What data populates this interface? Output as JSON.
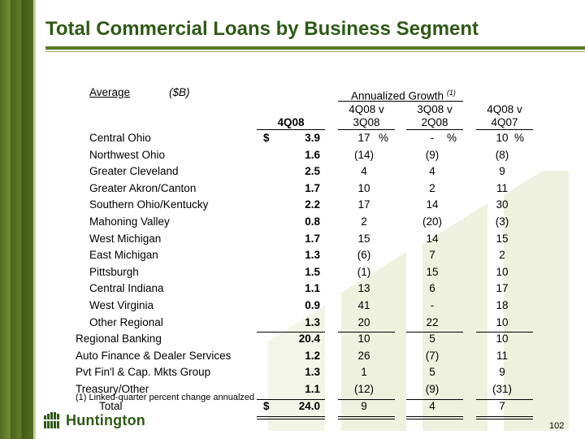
{
  "title": "Total Commercial Loans by Business Segment",
  "header": {
    "average_label": "Average",
    "unit_label": "($B)",
    "annualized_growth_label": "Annualized Growth",
    "annualized_growth_note": "(1)",
    "col_4q08": "4Q08",
    "col_a_line1": "4Q08 v",
    "col_a_line2": "3Q08",
    "col_b_line1": "3Q08 v",
    "col_b_line2": "2Q08",
    "col_c_line1": "4Q08 v",
    "col_c_line2": "4Q07"
  },
  "rows": [
    {
      "label": "Central Ohio",
      "dollar": "$",
      "value": "3.9",
      "g1": "17",
      "g1_pct": "%",
      "g2": "-",
      "g2_pct": "%",
      "g3": "10",
      "g3_pct": "%"
    },
    {
      "label": "Northwest Ohio",
      "dollar": "",
      "value": "1.6",
      "g1": "(14)",
      "g2": "(9)",
      "g3": "(8)"
    },
    {
      "label": "Greater Cleveland",
      "dollar": "",
      "value": "2.5",
      "g1": "4",
      "g2": "4",
      "g3": "9"
    },
    {
      "label": "Greater Akron/Canton",
      "dollar": "",
      "value": "1.7",
      "g1": "10",
      "g2": "2",
      "g3": "11"
    },
    {
      "label": "Southern Ohio/Kentucky",
      "dollar": "",
      "value": "2.2",
      "g1": "17",
      "g2": "14",
      "g3": "30"
    },
    {
      "label": "Mahoning Valley",
      "dollar": "",
      "value": "0.8",
      "g1": "2",
      "g2": "(20)",
      "g3": "(3)"
    },
    {
      "label": "West Michigan",
      "dollar": "",
      "value": "1.7",
      "g1": "15",
      "g2": "14",
      "g3": "15"
    },
    {
      "label": "East Michigan",
      "dollar": "",
      "value": "1.3",
      "g1": "(6)",
      "g2": "7",
      "g3": "2"
    },
    {
      "label": "Pittsburgh",
      "dollar": "",
      "value": "1.5",
      "g1": "(1)",
      "g2": "15",
      "g3": "10"
    },
    {
      "label": "Central Indiana",
      "dollar": "",
      "value": "1.1",
      "g1": "13",
      "g2": "6",
      "g3": "17"
    },
    {
      "label": "West Virginia",
      "dollar": "",
      "value": "0.9",
      "g1": "41",
      "g2": "-",
      "g3": "18"
    },
    {
      "label": "Other Regional",
      "dollar": "",
      "value": "1.3",
      "g1": "20",
      "g2": "22",
      "g3": "10"
    },
    {
      "label": "Regional Banking",
      "dollar": "",
      "value": "20.4",
      "g1": "10",
      "g2": "5",
      "g3": "10"
    },
    {
      "label": "Auto Finance & Dealer Services",
      "dollar": "",
      "value": "1.2",
      "g1": "26",
      "g2": "(7)",
      "g3": "11"
    },
    {
      "label": "Pvt Fin'l & Cap. Mkts Group",
      "dollar": "",
      "value": "1.3",
      "g1": "1",
      "g2": "5",
      "g3": "9"
    },
    {
      "label": "Treasury/Other",
      "dollar": "",
      "value": "1.1",
      "g1": "(12)",
      "g2": "(9)",
      "g3": "(31)"
    },
    {
      "label": "Total",
      "dollar": "$",
      "value": "24.0",
      "g1": "9",
      "g2": "4",
      "g3": "7"
    }
  ],
  "footnote": "(1)  Linked-quarter percent change annualzed",
  "logo_text": "Huntington",
  "page_number": "102",
  "colors": {
    "title": "#2f5a16",
    "accent": "#557a2b",
    "art": "#eef1de"
  }
}
